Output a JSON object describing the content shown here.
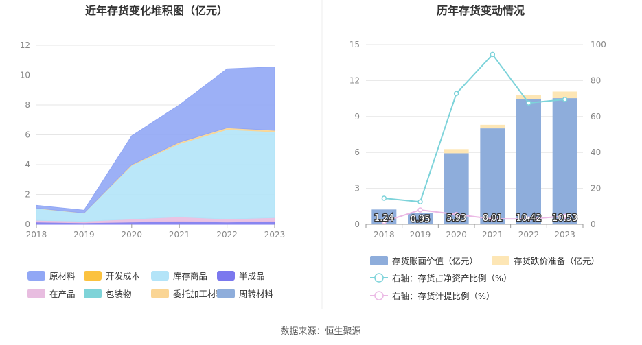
{
  "source_note": "数据来源：恒生聚源",
  "colors": {
    "raw": "#91A7F5",
    "dev": "#FBC23F",
    "goods": "#B3E4F8",
    "semi": "#7B78EE",
    "wip": "#E8BDE0",
    "pack": "#7ED3D8",
    "consign": "#FAD594",
    "turnover": "#8EADDB",
    "bar": "#8EADDB",
    "impair": "#FDE6B5",
    "ratio": "#7DD3DA",
    "provision": "#EBB9E5"
  },
  "chart_data": [
    {
      "type": "area",
      "title": "近年存货变化堆积图（亿元）",
      "x": [
        "2018",
        "2019",
        "2020",
        "2021",
        "2022",
        "2023"
      ],
      "ylim": [
        0,
        12
      ],
      "yticks": [
        "0",
        "2",
        "4",
        "6",
        "8",
        "10",
        "12"
      ],
      "grid": true,
      "stacked": true,
      "series": [
        {
          "name": "半成品",
          "color_key": "semi",
          "values": [
            0.15,
            0.1,
            0.15,
            0.2,
            0.15,
            0.2
          ]
        },
        {
          "name": "在产品",
          "color_key": "wip",
          "values": [
            0.12,
            0.1,
            0.2,
            0.3,
            0.2,
            0.25
          ]
        },
        {
          "name": "库存商品",
          "color_key": "goods",
          "values": [
            0.8,
            0.55,
            3.6,
            4.9,
            6.0,
            5.75
          ]
        },
        {
          "name": "委托加工材料",
          "color_key": "consign",
          "values": [
            0.02,
            0.01,
            0.05,
            0.1,
            0.12,
            0.1
          ]
        },
        {
          "name": "原材料",
          "color_key": "raw",
          "values": [
            0.18,
            0.19,
            1.93,
            2.5,
            3.95,
            4.25
          ]
        }
      ],
      "legend": [
        {
          "name": "原材料",
          "color_key": "raw"
        },
        {
          "name": "开发成本",
          "color_key": "dev"
        },
        {
          "name": "库存商品",
          "color_key": "goods"
        },
        {
          "name": "半成品",
          "color_key": "semi"
        },
        {
          "name": "在产品",
          "color_key": "wip"
        },
        {
          "name": "包装物",
          "color_key": "pack"
        },
        {
          "name": "委托加工材料",
          "color_key": "consign"
        },
        {
          "name": "周转材料",
          "color_key": "turnover"
        }
      ]
    },
    {
      "type": "bar",
      "title": "历年存货变动情况",
      "categories": [
        "2018",
        "2019",
        "2020",
        "2021",
        "2022",
        "2023"
      ],
      "ylim": [
        0,
        15
      ],
      "yticks": [
        "0",
        "3",
        "6",
        "9",
        "12",
        "15"
      ],
      "y2lim": [
        0,
        100
      ],
      "y2ticks": [
        "0",
        "20",
        "40",
        "60",
        "80",
        "100"
      ],
      "grid": true,
      "series": [
        {
          "name": "存货账面价值（亿元）",
          "kind": "bar",
          "color_key": "bar",
          "values": [
            1.24,
            0.95,
            5.93,
            8.01,
            10.42,
            10.53
          ],
          "labels": [
            "1.24",
            "0.95",
            "5.93",
            "8.01",
            "10.42",
            "10.53"
          ]
        },
        {
          "name": "存货跌价准备（亿元）",
          "kind": "bar-stack",
          "color_key": "impair",
          "values": [
            0.0,
            0.0,
            0.35,
            0.3,
            0.35,
            0.55
          ]
        },
        {
          "name": "右轴：存货占净资产比例（%）",
          "kind": "line",
          "axis": "right",
          "color_key": "ratio",
          "values": [
            14.5,
            12.5,
            72.8,
            94.5,
            67.5,
            69.5
          ]
        },
        {
          "name": "右轴：存货计提比例（%）",
          "kind": "line",
          "axis": "right",
          "color_key": "provision",
          "values": [
            1.5,
            8.0,
            5.5,
            3.0,
            3.0,
            4.5
          ]
        }
      ],
      "legend_placement": "bottom"
    }
  ]
}
